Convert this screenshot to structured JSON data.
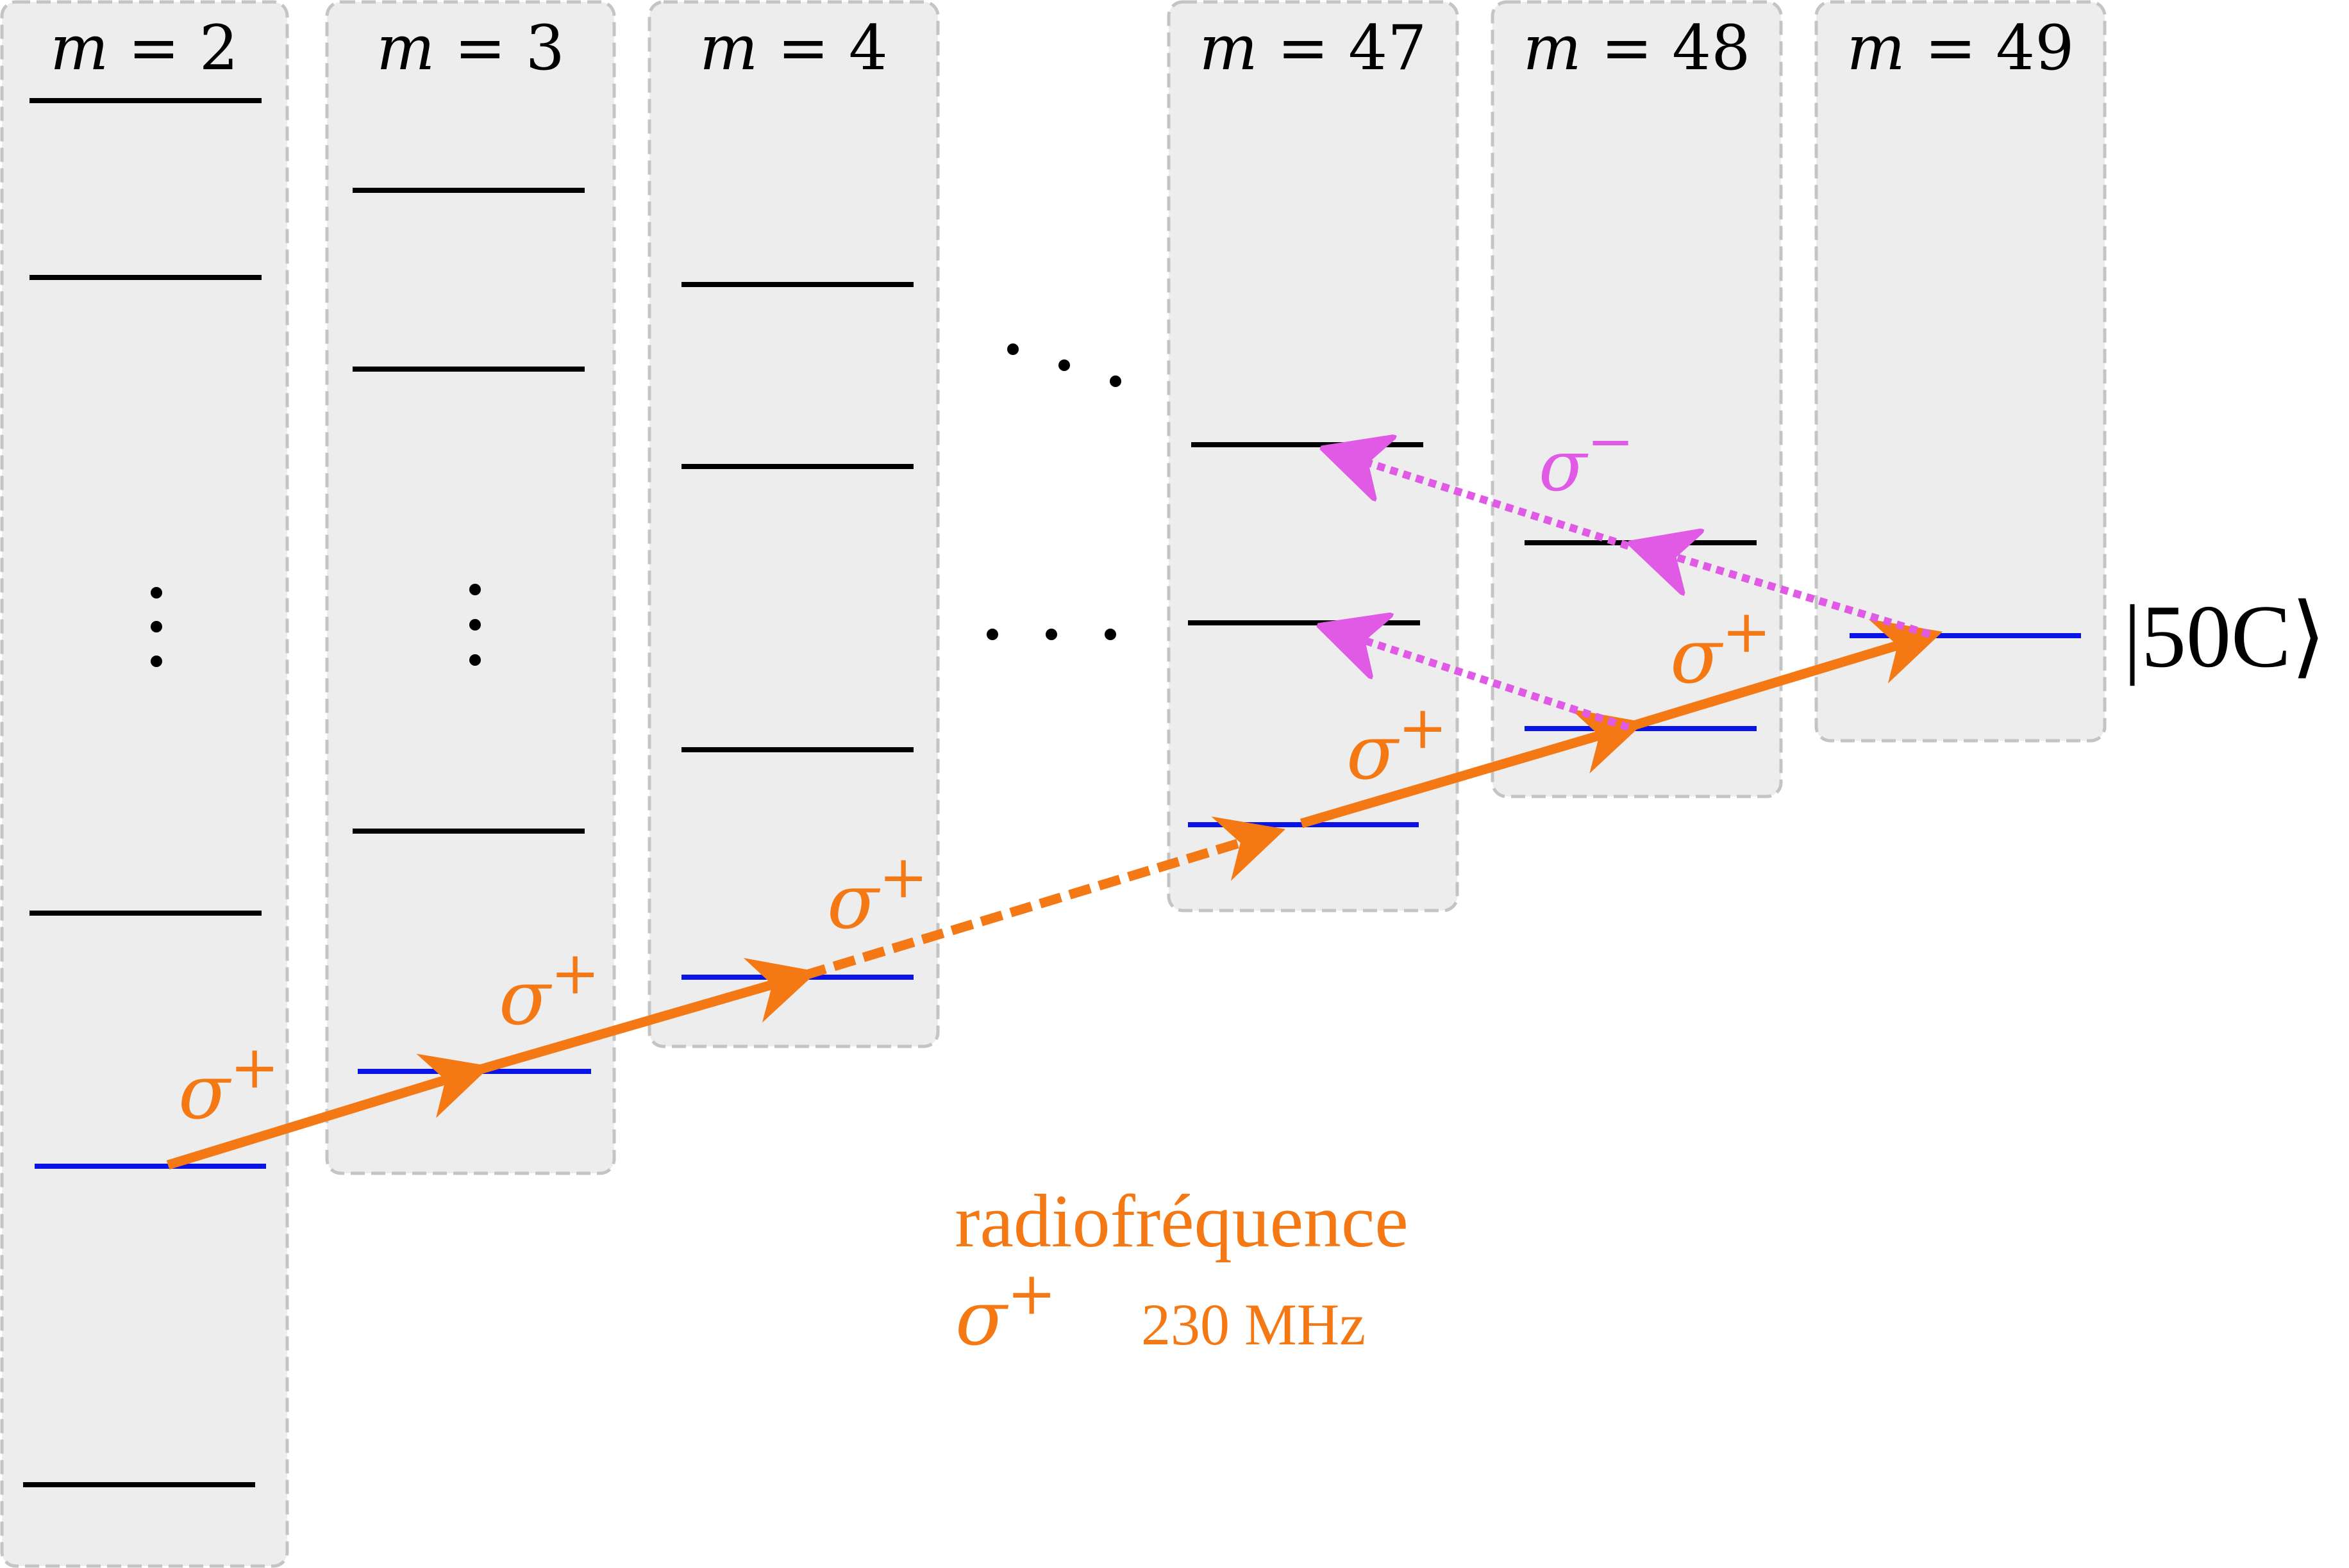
{
  "columns": [
    {
      "label_var": "m",
      "label_eq": " = 2"
    },
    {
      "label_var": "m",
      "label_eq": " = 3"
    },
    {
      "label_var": "m",
      "label_eq": " = 4"
    },
    {
      "label_var": "m",
      "label_eq": " = 47"
    },
    {
      "label_var": "m",
      "label_eq": " = 48"
    },
    {
      "label_var": "m",
      "label_eq": " = 49"
    }
  ],
  "transitions": {
    "sigma_plus_symbol": "σ",
    "sigma_plus_sup": "+",
    "sigma_minus_symbol": "σ",
    "sigma_minus_sup": "−"
  },
  "ellipsis": "·  ·  ·",
  "state_label": "|50C⟩",
  "rf": {
    "title": "radiofréquence",
    "polarization_symbol": "σ",
    "polarization_sup": "+",
    "frequency": "230 MHz"
  },
  "colors": {
    "panel": "#ededed",
    "panel_border": "#c4c4c4",
    "circular_level": "#0a14e6",
    "other_level": "#000000",
    "sigma_plus": "#f47814",
    "sigma_minus": "#e05ae6"
  }
}
